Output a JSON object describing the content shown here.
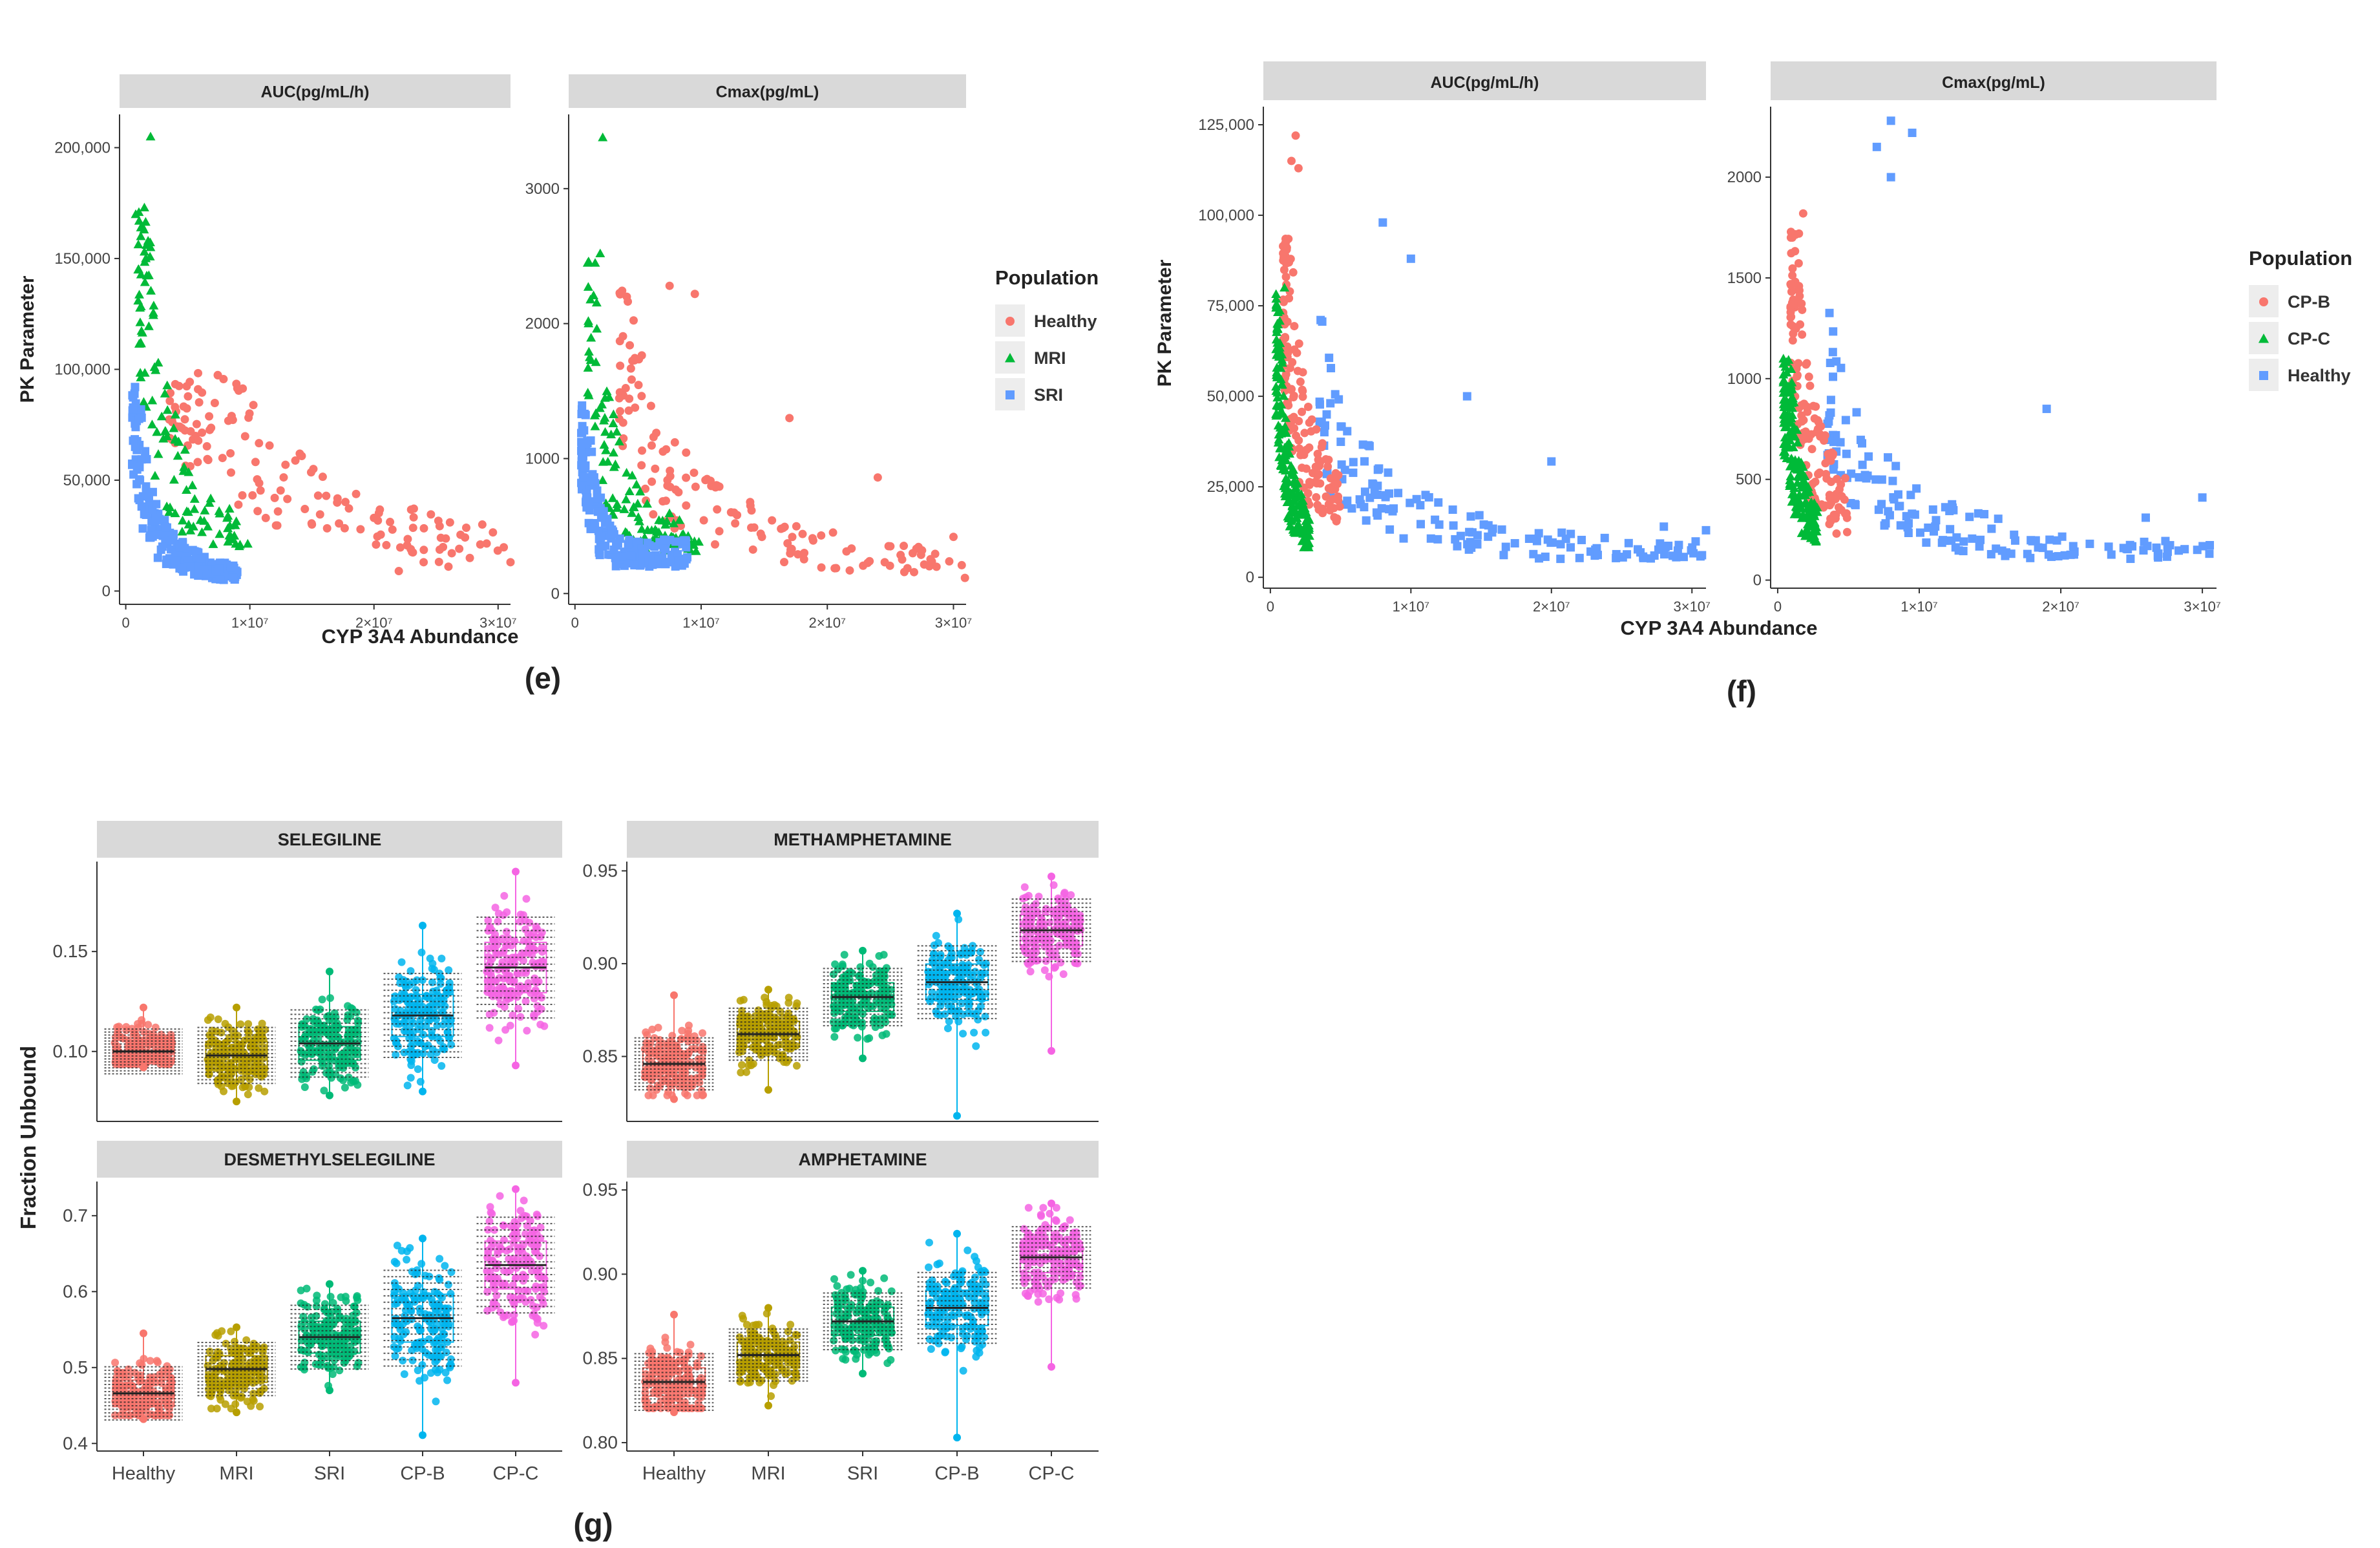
{
  "colors": {
    "healthy_ef": "#F8766D",
    "mri": "#00BA38",
    "sri_ef": "#619CFF",
    "g_healthy": "#F8766D",
    "g_mri": "#B79F00",
    "g_sri": "#00BA77",
    "g_cpb": "#00B5EE",
    "g_cpc": "#F564E3",
    "strip_fill": "#D9D9D9",
    "axis": "#333333"
  },
  "legend_e": {
    "title": "Population",
    "items": [
      {
        "label": "Healthy",
        "shape": "circle",
        "color": "#F8766D"
      },
      {
        "label": "MRI",
        "shape": "triangle",
        "color": "#00BA38"
      },
      {
        "label": "SRI",
        "shape": "square",
        "color": "#619CFF"
      }
    ]
  },
  "legend_f": {
    "title": "Population",
    "items": [
      {
        "label": "CP-B",
        "shape": "circle",
        "color": "#F8766D"
      },
      {
        "label": "CP-C",
        "shape": "triangle",
        "color": "#00BA38"
      },
      {
        "label": "Healthy",
        "shape": "square",
        "color": "#619CFF"
      }
    ]
  },
  "chart_data": [
    {
      "id": "e",
      "type": "scatter",
      "caption": "(e)",
      "xlabel": "CYP 3A4 Abundance",
      "ylabel": "PK Parameter",
      "legend": "legend_e",
      "xlim": [
        -500000,
        31000000
      ],
      "xticks": [
        {
          "v": 0,
          "l": "0"
        },
        {
          "v": 10000000,
          "l": "1×10⁷"
        },
        {
          "v": 20000000,
          "l": "2×10⁷"
        },
        {
          "v": 30000000,
          "l": "3×10⁷"
        }
      ],
      "panels": [
        {
          "title": "AUC(pg/mL/h)",
          "ylim": [
            -6000,
            215000
          ],
          "yticks": [
            {
              "v": 0,
              "l": "0"
            },
            {
              "v": 50000,
              "l": "50,000"
            },
            {
              "v": 100000,
              "l": "100,000"
            },
            {
              "v": 150000,
              "l": "150,000"
            },
            {
              "v": 200000,
              "l": "200,000"
            }
          ],
          "series": [
            {
              "name": "Healthy",
              "shape": "circle",
              "color": "#F8766D",
              "n": 140,
              "xmin": 3500000,
              "xmax": 31000000,
              "yscale": 600000000000,
              "ymin": 5000,
              "ymax": 100000,
              "extra": [
                [
                  12000000,
                  42000
                ],
                [
                  15000000,
                  30000
                ],
                [
                  20000000,
                  33000
                ],
                [
                  24000000,
                  13000
                ],
                [
                  31000000,
                  13000
                ],
                [
                  26000000,
                  11000
                ],
                [
                  22000000,
                  9000
                ]
              ]
            },
            {
              "name": "MRI",
              "shape": "triangle",
              "color": "#00BA38",
              "n": 110,
              "xmin": 1000000,
              "xmax": 10000000,
              "yscale": 220000000000,
              "ymin": 20000,
              "ymax": 175000,
              "extra": [
                [
                  2000000,
                  205000
                ],
                [
                  1500000,
                  173000
                ],
                [
                  800000,
                  170000
                ],
                [
                  1800000,
                  158000
                ],
                [
                  1000000,
                  145000
                ]
              ]
            },
            {
              "name": "SRI",
              "shape": "square",
              "color": "#619CFF",
              "n": 200,
              "xmin": 500000,
              "xmax": 9000000,
              "yscale": 70000000000,
              "ymin": 5000,
              "ymax": 95000,
              "extra": []
            }
          ]
        },
        {
          "title": "Cmax(pg/mL)",
          "ylim": [
            -80,
            3550
          ],
          "yticks": [
            {
              "v": 0,
              "l": "0"
            },
            {
              "v": 1000,
              "l": "1000"
            },
            {
              "v": 2000,
              "l": "2000"
            },
            {
              "v": 3000,
              "l": "3000"
            }
          ],
          "series": [
            {
              "name": "Healthy",
              "shape": "circle",
              "color": "#F8766D",
              "n": 140,
              "xmin": 3500000,
              "xmax": 31000000,
              "yscale": 6500000000,
              "ymin": 100,
              "ymax": 2300,
              "extra": [
                [
                  7500000,
                  2280
                ],
                [
                  9500000,
                  2220
                ],
                [
                  17000000,
                  1300
                ],
                [
                  24000000,
                  860
                ],
                [
                  30000000,
                  420
                ],
                [
                  25000000,
                  350
                ]
              ]
            },
            {
              "name": "MRI",
              "shape": "triangle",
              "color": "#00BA38",
              "n": 110,
              "xmin": 1000000,
              "xmax": 10000000,
              "yscale": 2800000000,
              "ymin": 300,
              "ymax": 2500,
              "extra": [
                [
                  2200000,
                  3380
                ],
                [
                  2000000,
                  2520
                ],
                [
                  1600000,
                  2450
                ]
              ]
            },
            {
              "name": "SRI",
              "shape": "square",
              "color": "#619CFF",
              "n": 200,
              "xmin": 500000,
              "xmax": 9000000,
              "yscale": 1000000000,
              "ymin": 200,
              "ymax": 1400,
              "extra": []
            }
          ]
        }
      ]
    },
    {
      "id": "f",
      "type": "scatter",
      "caption": "(f)",
      "xlabel": "CYP 3A4 Abundance",
      "ylabel": "PK Parameter",
      "legend": "legend_f",
      "xlim": [
        -500000,
        31000000
      ],
      "xticks": [
        {
          "v": 0,
          "l": "0"
        },
        {
          "v": 10000000,
          "l": "1×10⁷"
        },
        {
          "v": 20000000,
          "l": "2×10⁷"
        },
        {
          "v": 30000000,
          "l": "3×10⁷"
        }
      ],
      "panels": [
        {
          "title": "AUC(pg/mL/h)",
          "ylim": [
            -3000,
            130000
          ],
          "yticks": [
            {
              "v": 0,
              "l": "0"
            },
            {
              "v": 25000,
              "l": "25,000"
            },
            {
              "v": 50000,
              "l": "50,000"
            },
            {
              "v": 75000,
              "l": "75,000"
            },
            {
              "v": 100000,
              "l": "100,000"
            },
            {
              "v": 125000,
              "l": "125,000"
            }
          ],
          "series": [
            {
              "name": "Healthy",
              "shape": "square",
              "color": "#619CFF",
              "n": 150,
              "xmin": 3500000,
              "xmax": 31000000,
              "yscale": 180000000000,
              "ymin": 5000,
              "ymax": 98000,
              "extra": [
                [
                  8000000,
                  98000
                ],
                [
                  10000000,
                  88000
                ],
                [
                  14000000,
                  50000
                ],
                [
                  20000000,
                  32000
                ],
                [
                  28000000,
                  14000
                ],
                [
                  31000000,
                  13000
                ]
              ]
            },
            {
              "name": "CP-B",
              "shape": "circle",
              "color": "#F8766D",
              "n": 140,
              "xmin": 900000,
              "xmax": 5000000,
              "yscale": 95000000000,
              "ymin": 5000,
              "ymax": 95000,
              "extra": [
                [
                  1800000,
                  122000
                ],
                [
                  1500000,
                  115000
                ],
                [
                  2000000,
                  113000
                ]
              ]
            },
            {
              "name": "CP-C",
              "shape": "triangle",
              "color": "#00BA38",
              "n": 190,
              "xmin": 400000,
              "xmax": 2800000,
              "yscale": 35000000000,
              "ymin": 5000,
              "ymax": 80000,
              "extra": [
                [
                  1000000,
                  80000
                ]
              ]
            }
          ]
        },
        {
          "title": "Cmax(pg/mL)",
          "ylim": [
            -40,
            2350
          ],
          "yticks": [
            {
              "v": 0,
              "l": "0"
            },
            {
              "v": 500,
              "l": "500"
            },
            {
              "v": 1000,
              "l": "1000"
            },
            {
              "v": 1500,
              "l": "1500"
            },
            {
              "v": 2000,
              "l": "2000"
            }
          ],
          "series": [
            {
              "name": "Healthy",
              "shape": "square",
              "color": "#619CFF",
              "n": 150,
              "xmin": 3500000,
              "xmax": 31000000,
              "yscale": 3400000000,
              "ymin": 100,
              "ymax": 2280,
              "extra": [
                [
                  7000000,
                  2150
                ],
                [
                  8000000,
                  2280
                ],
                [
                  9500000,
                  2220
                ],
                [
                  8000000,
                  2000
                ],
                [
                  19000000,
                  850
                ],
                [
                  30000000,
                  410
                ],
                [
                  26000000,
                  310
                ]
              ]
            },
            {
              "name": "CP-B",
              "shape": "circle",
              "color": "#F8766D",
              "n": 140,
              "xmin": 900000,
              "xmax": 5000000,
              "yscale": 1700000000,
              "ymin": 150,
              "ymax": 1750,
              "extra": [
                [
                  1800000,
                  1820
                ],
                [
                  1500000,
                  1720
                ]
              ]
            },
            {
              "name": "CP-C",
              "shape": "triangle",
              "color": "#00BA38",
              "n": 190,
              "xmin": 400000,
              "xmax": 2800000,
              "yscale": 700000000,
              "ymin": 150,
              "ymax": 1100,
              "extra": []
            }
          ]
        }
      ]
    },
    {
      "id": "g",
      "type": "box",
      "caption": "(g)",
      "ylabel": "Fraction Unbound",
      "categories": [
        "Healthy",
        "MRI",
        "SRI",
        "CP-B",
        "CP-C"
      ],
      "panels": [
        {
          "title": "SELEGILINE",
          "ylim": [
            0.065,
            0.195
          ],
          "yticks": [
            {
              "v": 0.1,
              "l": "0.10"
            },
            {
              "v": 0.15,
              "l": "0.15"
            }
          ],
          "medians": [
            0.1,
            0.098,
            0.104,
            0.118,
            0.142
          ],
          "spread": [
            0.008,
            0.01,
            0.012,
            0.015,
            0.018
          ],
          "min": [
            0.092,
            0.075,
            0.078,
            0.08,
            0.093
          ],
          "max": [
            0.122,
            0.122,
            0.14,
            0.163,
            0.19
          ]
        },
        {
          "title": "METHAMPHETAMINE",
          "ylim": [
            0.815,
            0.955
          ],
          "yticks": [
            {
              "v": 0.85,
              "l": "0.85"
            },
            {
              "v": 0.9,
              "l": "0.90"
            },
            {
              "v": 0.95,
              "l": "0.95"
            }
          ],
          "medians": [
            0.846,
            0.862,
            0.882,
            0.89,
            0.918
          ],
          "spread": [
            0.01,
            0.01,
            0.011,
            0.014,
            0.012
          ],
          "min": [
            0.827,
            0.832,
            0.849,
            0.818,
            0.853
          ],
          "max": [
            0.883,
            0.886,
            0.907,
            0.927,
            0.947
          ]
        },
        {
          "title": "DESMETHYLSELEGILINE",
          "ylim": [
            0.39,
            0.745
          ],
          "yticks": [
            {
              "v": 0.4,
              "l": "0.4"
            },
            {
              "v": 0.5,
              "l": "0.5"
            },
            {
              "v": 0.6,
              "l": "0.6"
            },
            {
              "v": 0.7,
              "l": "0.7"
            }
          ],
          "medians": [
            0.466,
            0.498,
            0.54,
            0.565,
            0.635
          ],
          "spread": [
            0.025,
            0.025,
            0.03,
            0.045,
            0.045
          ],
          "min": [
            0.432,
            0.441,
            0.47,
            0.411,
            0.48
          ],
          "max": [
            0.545,
            0.553,
            0.61,
            0.67,
            0.735
          ]
        },
        {
          "title": "AMPHETAMINE",
          "ylim": [
            0.795,
            0.955
          ],
          "yticks": [
            {
              "v": 0.8,
              "l": "0.80"
            },
            {
              "v": 0.85,
              "l": "0.85"
            },
            {
              "v": 0.9,
              "l": "0.90"
            },
            {
              "v": 0.95,
              "l": "0.95"
            }
          ],
          "medians": [
            0.836,
            0.852,
            0.872,
            0.88,
            0.91
          ],
          "spread": [
            0.012,
            0.011,
            0.012,
            0.015,
            0.013
          ],
          "min": [
            0.818,
            0.822,
            0.841,
            0.803,
            0.845
          ],
          "max": [
            0.876,
            0.88,
            0.902,
            0.924,
            0.942
          ]
        }
      ]
    }
  ]
}
